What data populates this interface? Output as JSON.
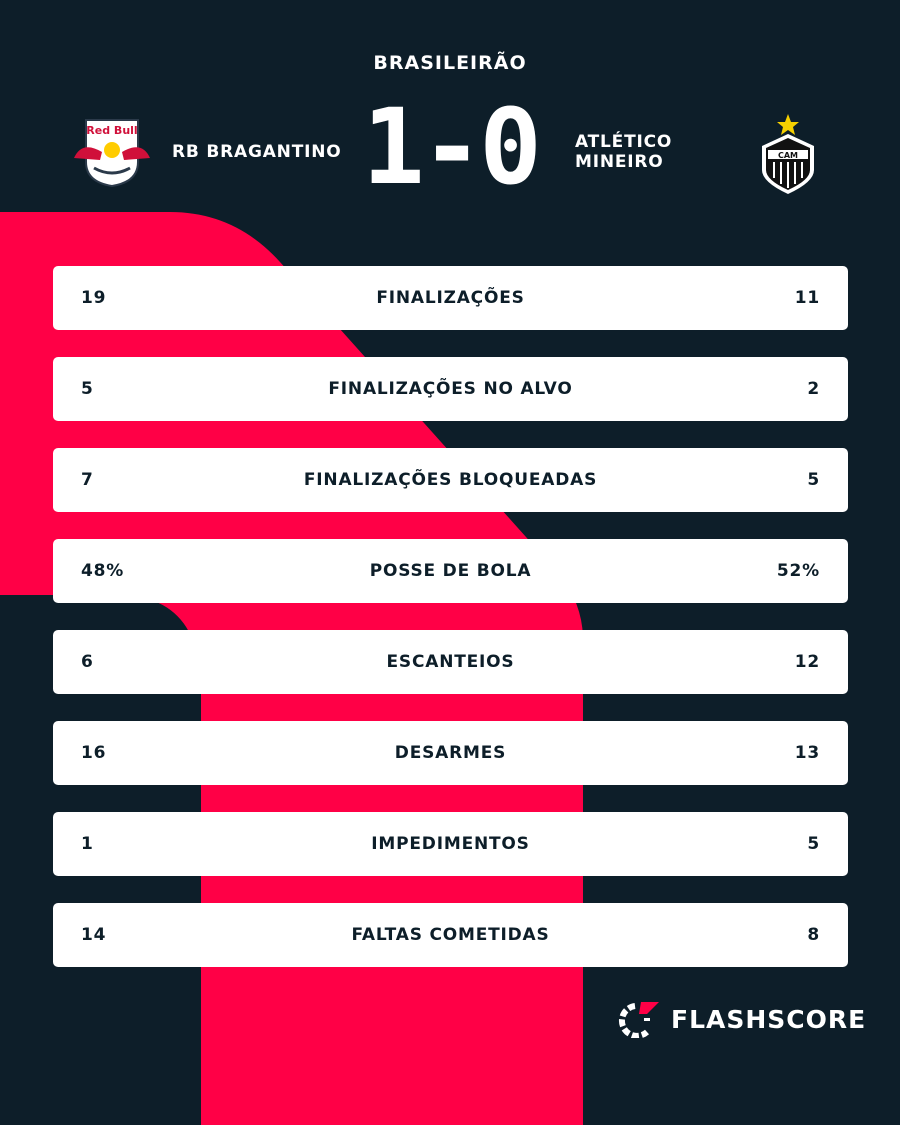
{
  "league": "BRASILEIRÃO",
  "home": {
    "name": "RB BRAGANTINO",
    "logo_text": "Red Bull BRAGANTINO"
  },
  "away": {
    "name_line1": "ATLÉTICO",
    "name_line2": "MINEIRO",
    "logo_text": "CAM"
  },
  "score": "1-0",
  "stats": [
    {
      "label": "FINALIZAÇÕES",
      "home": "19",
      "away": "11"
    },
    {
      "label": "FINALIZAÇÕES NO ALVO",
      "home": "5",
      "away": "2"
    },
    {
      "label": "FINALIZAÇÕES BLOQUEADAS",
      "home": "7",
      "away": "5"
    },
    {
      "label": "POSSE DE BOLA",
      "home": "48%",
      "away": "52%"
    },
    {
      "label": "ESCANTEIOS",
      "home": "6",
      "away": "12"
    },
    {
      "label": "DESARMES",
      "home": "16",
      "away": "13"
    },
    {
      "label": "IMPEDIMENTOS",
      "home": "1",
      "away": "5"
    },
    {
      "label": "FALTAS COMETIDAS",
      "home": "14",
      "away": "8"
    }
  ],
  "brand": "FLASHSCORE",
  "colors": {
    "background": "#0d1e29",
    "accent": "#ff0046"
  }
}
